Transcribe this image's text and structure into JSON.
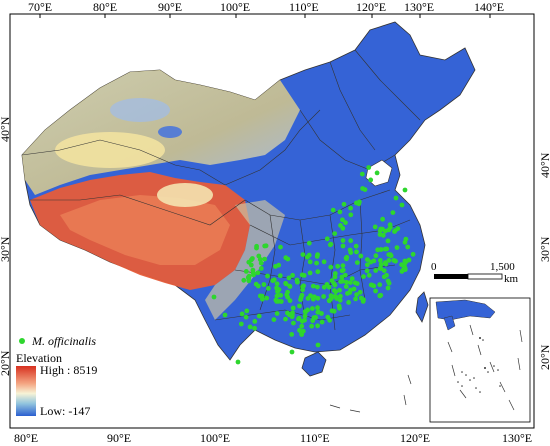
{
  "axes": {
    "top_longitudes": [
      "70°E",
      "80°E",
      "90°E",
      "100°E",
      "110°E",
      "120°E",
      "130°E",
      "140°E"
    ],
    "bottom_longitudes": [
      "80°E",
      "90°E",
      "100°E",
      "110°E",
      "120°E",
      "130°E"
    ],
    "left_latitudes": [
      "40°N",
      "30°N",
      "20°N"
    ],
    "right_latitudes": [
      "40°N",
      "30°N",
      "20°N"
    ]
  },
  "legend": {
    "species_label": "M. officinalis",
    "elevation_title": "Elevation",
    "high_label": "High : 8519",
    "low_label": "Low: -147",
    "point_color": "#2ed62e"
  },
  "scale_bar": {
    "start_label": "0",
    "end_label": "1,500",
    "unit": "km"
  },
  "colors": {
    "low_elevation": "#2f5fd6",
    "mid_elevation": "#f2ecd0",
    "high_elevation": "#e8533a"
  }
}
